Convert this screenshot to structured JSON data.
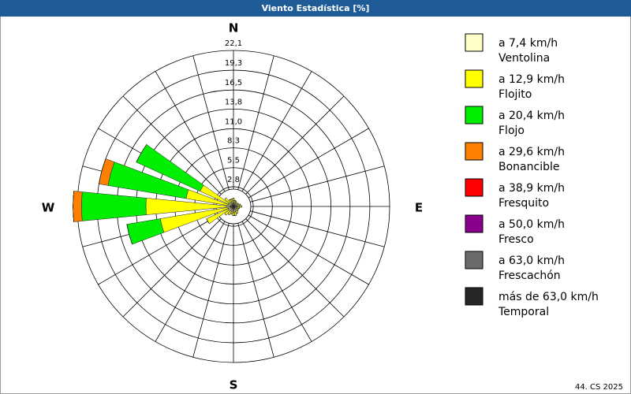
{
  "chart_data": {
    "type": "wind_rose",
    "title": "Viento Estadística [%]",
    "footer": "44. CS 2025",
    "compass": {
      "N": "N",
      "E": "E",
      "S": "S",
      "W": "W"
    },
    "directions": [
      0,
      15,
      30,
      45,
      60,
      75,
      90,
      105,
      120,
      135,
      150,
      165,
      180,
      195,
      210,
      225,
      240,
      255,
      270,
      285,
      300,
      315,
      330,
      345
    ],
    "rlim": [
      0,
      22.1
    ],
    "rticks": [
      {
        "value": 2.8,
        "label": "2,8"
      },
      {
        "value": 5.5,
        "label": "5,5"
      },
      {
        "value": 8.3,
        "label": "8,3"
      },
      {
        "value": 11.0,
        "label": "11,0"
      },
      {
        "value": 13.8,
        "label": "13,8"
      },
      {
        "value": 16.5,
        "label": "16,5"
      },
      {
        "value": 19.3,
        "label": "19,3"
      },
      {
        "value": 22.1,
        "label": "22,1"
      }
    ],
    "series": [
      {
        "name": "a 7,4 km/h",
        "description": "Ventolina",
        "color": "#ffffc8",
        "values": [
          0.8,
          0.6,
          0.6,
          0.5,
          0.6,
          0.7,
          0.8,
          0.6,
          0.6,
          0.6,
          0.7,
          0.8,
          0.8,
          0.7,
          0.7,
          0.8,
          0.8,
          0.8,
          1.0,
          0.8,
          0.8,
          0.7,
          0.6,
          0.7
        ]
      },
      {
        "name": "a 12,9 km/h",
        "description": "Flojito",
        "color": "#ffff00",
        "values": [
          0.4,
          0.3,
          0.2,
          0.2,
          0.2,
          0.3,
          0.4,
          0.3,
          0.2,
          0.3,
          0.4,
          0.5,
          0.5,
          0.4,
          0.6,
          0.8,
          3.4,
          9.7,
          11.4,
          6.0,
          4.4,
          0.9,
          0.5,
          0.4
        ]
      },
      {
        "name": "a 20,4 km/h",
        "description": "Flojo",
        "color": "#00ee00",
        "values": [
          0,
          0,
          0,
          0,
          0,
          0,
          0,
          0,
          0,
          0,
          0,
          0,
          0,
          0,
          0,
          0,
          0,
          4.8,
          9.1,
          11.2,
          9.9,
          0,
          0,
          0
        ]
      },
      {
        "name": "a 29,6 km/h",
        "description": "Bonancible",
        "color": "#ff8000",
        "values": [
          0,
          0,
          0,
          0,
          0,
          0,
          0,
          0,
          0,
          0,
          0,
          0,
          0,
          0,
          0,
          0,
          0,
          0,
          1.2,
          1.3,
          0,
          0,
          0,
          0
        ]
      },
      {
        "name": "a 38,9 km/h",
        "description": "Fresquito",
        "color": "#ff0000",
        "values": [
          0,
          0,
          0,
          0,
          0,
          0,
          0,
          0,
          0,
          0,
          0,
          0,
          0,
          0,
          0,
          0,
          0,
          0,
          0,
          0,
          0,
          0,
          0,
          0
        ]
      },
      {
        "name": "a 50,0 km/h",
        "description": "Fresco",
        "color": "#8b008b",
        "values": [
          0,
          0,
          0,
          0,
          0,
          0,
          0,
          0,
          0,
          0,
          0,
          0,
          0,
          0,
          0,
          0,
          0,
          0,
          0,
          0,
          0,
          0,
          0,
          0
        ]
      },
      {
        "name": "a 63,0 km/h",
        "description": "Frescachón",
        "color": "#6b6b6b",
        "values": [
          0,
          0,
          0,
          0,
          0,
          0,
          0,
          0,
          0,
          0,
          0,
          0,
          0,
          0,
          0,
          0,
          0,
          0,
          0,
          0,
          0,
          0,
          0,
          0
        ]
      },
      {
        "name": "más de 63,0 km/h",
        "description": "Temporal",
        "color": "#262626",
        "values": [
          0,
          0,
          0,
          0,
          0,
          0,
          0,
          0,
          0,
          0,
          0,
          0,
          0,
          0,
          0,
          0,
          0,
          0,
          0,
          0,
          0,
          0,
          0,
          0
        ]
      }
    ]
  }
}
